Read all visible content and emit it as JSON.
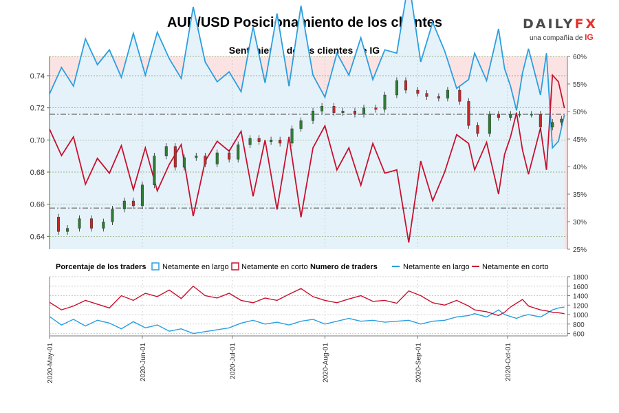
{
  "header": {
    "title": "AUD/USD Posicionamiento de los clientes",
    "subtitle": "Sentimiento de los clientes de IG",
    "brand_daily": "DAILY",
    "brand_fx": "FX",
    "brand_tagline": "una compañía de",
    "brand_ig": "IG"
  },
  "colors": {
    "long": "#2a9fe0",
    "short": "#c8102e",
    "up": "#2e7d32",
    "down": "#c62828",
    "bg_short": "#fbe3e4",
    "bg_long": "#e5f2fa"
  },
  "legend": {
    "pct_title": "Porcentaje de los traders",
    "pct_long": "Netamente en largo",
    "pct_short": "Netamente en corto",
    "num_title": "Numero de traders",
    "num_long": "Netamente en largo",
    "num_short": "Netamente en corto"
  },
  "chart_data": [
    {
      "type": "candlestick",
      "title": "Sentimiento de los clientes de IG",
      "ylim": [
        0.632,
        0.752
      ],
      "y_ticks": [
        "0.74",
        "0.72",
        "0.70",
        "0.68",
        "0.66",
        "0.64"
      ],
      "y_tick_values": [
        0.74,
        0.72,
        0.7,
        0.68,
        0.66,
        0.64
      ],
      "y2_ticks": [
        "60%",
        "55%",
        "50%",
        "45%",
        "40%",
        "35%",
        "30%",
        "25%"
      ],
      "y2_tick_values": [
        60,
        55,
        50,
        45,
        40,
        35,
        30,
        25
      ],
      "reference_levels": [
        0.716,
        0.6576
      ],
      "x_labels": [
        "2020-May-01",
        "2020-Jun-01",
        "2020-Jul-01",
        "2020-Aug-01",
        "2020-Sep-01",
        "2020-Oct-01"
      ],
      "x_label_days": [
        0,
        31,
        61,
        92,
        123,
        153
      ],
      "price_close": [
        [
          0,
          0.652
        ],
        [
          3,
          0.643
        ],
        [
          6,
          0.645
        ],
        [
          10,
          0.651
        ],
        [
          14,
          0.645
        ],
        [
          18,
          0.649
        ],
        [
          21,
          0.657
        ],
        [
          25,
          0.662
        ],
        [
          28,
          0.659
        ],
        [
          31,
          0.672
        ],
        [
          35,
          0.69
        ],
        [
          39,
          0.696
        ],
        [
          42,
          0.683
        ],
        [
          45,
          0.689
        ],
        [
          49,
          0.69
        ],
        [
          52,
          0.685
        ],
        [
          56,
          0.692
        ],
        [
          60,
          0.688
        ],
        [
          63,
          0.697
        ],
        [
          67,
          0.701
        ],
        [
          70,
          0.699
        ],
        [
          74,
          0.7
        ],
        [
          77,
          0.698
        ],
        [
          81,
          0.707
        ],
        [
          84,
          0.712
        ],
        [
          88,
          0.718
        ],
        [
          91,
          0.721
        ],
        [
          95,
          0.717
        ],
        [
          98,
          0.718
        ],
        [
          102,
          0.716
        ],
        [
          105,
          0.72
        ],
        [
          109,
          0.719
        ],
        [
          112,
          0.728
        ],
        [
          116,
          0.737
        ],
        [
          119,
          0.731
        ],
        [
          123,
          0.729
        ],
        [
          126,
          0.727
        ],
        [
          130,
          0.726
        ],
        [
          133,
          0.731
        ],
        [
          137,
          0.724
        ],
        [
          140,
          0.709
        ],
        [
          143,
          0.704
        ],
        [
          147,
          0.716
        ],
        [
          150,
          0.714
        ],
        [
          154,
          0.716
        ],
        [
          157,
          0.716
        ],
        [
          161,
          0.716
        ],
        [
          164,
          0.708
        ],
        [
          168,
          0.711
        ],
        [
          171,
          0.713
        ]
      ],
      "series": [
        {
          "name": "Netamente en largo (%)",
          "values": [
            [
              0,
              53.2
            ],
            [
              4,
              58.0
            ],
            [
              8,
              54.6
            ],
            [
              12,
              63.2
            ],
            [
              16,
              58.5
            ],
            [
              20,
              61.2
            ],
            [
              24,
              56.2
            ],
            [
              28,
              64.2
            ],
            [
              32,
              56.6
            ],
            [
              36,
              64.4
            ],
            [
              40,
              59.6
            ],
            [
              44,
              56.0
            ],
            [
              48,
              69.0
            ],
            [
              52,
              59.0
            ],
            [
              56,
              55.4
            ],
            [
              60,
              57.2
            ],
            [
              64,
              53.6
            ],
            [
              68,
              65.4
            ],
            [
              72,
              55.2
            ],
            [
              76,
              67.8
            ],
            [
              80,
              54.6
            ],
            [
              84,
              69.2
            ],
            [
              88,
              56.6
            ],
            [
              92,
              52.6
            ],
            [
              96,
              60.6
            ],
            [
              100,
              56.6
            ],
            [
              104,
              63.4
            ],
            [
              108,
              55.8
            ],
            [
              112,
              61.2
            ],
            [
              116,
              60.6
            ],
            [
              120,
              73.8
            ],
            [
              124,
              59.0
            ],
            [
              128,
              66.2
            ],
            [
              132,
              61.0
            ],
            [
              136,
              54.2
            ],
            [
              140,
              55.8
            ],
            [
              142,
              60.6
            ],
            [
              146,
              55.6
            ],
            [
              150,
              65.0
            ],
            [
              152,
              57.8
            ],
            [
              154,
              54.6
            ],
            [
              156,
              50.2
            ],
            [
              158,
              57.0
            ],
            [
              160,
              61.4
            ],
            [
              164,
              53.0
            ],
            [
              166,
              60.6
            ],
            [
              168,
              43.4
            ],
            [
              170,
              44.6
            ],
            [
              172,
              49.4
            ]
          ]
        },
        {
          "name": "Netamente en corto (%)",
          "values": [
            [
              0,
              46.8
            ],
            [
              4,
              42.0
            ],
            [
              8,
              45.4
            ],
            [
              12,
              36.8
            ],
            [
              16,
              41.5
            ],
            [
              20,
              38.8
            ],
            [
              24,
              43.8
            ],
            [
              28,
              35.8
            ],
            [
              32,
              43.4
            ],
            [
              36,
              35.6
            ],
            [
              40,
              40.4
            ],
            [
              44,
              44.0
            ],
            [
              48,
              31.0
            ],
            [
              52,
              41.0
            ],
            [
              56,
              44.6
            ],
            [
              60,
              42.8
            ],
            [
              64,
              46.4
            ],
            [
              68,
              34.6
            ],
            [
              72,
              44.8
            ],
            [
              76,
              32.2
            ],
            [
              80,
              45.4
            ],
            [
              84,
              30.8
            ],
            [
              88,
              43.4
            ],
            [
              92,
              47.4
            ],
            [
              96,
              39.4
            ],
            [
              100,
              43.4
            ],
            [
              104,
              36.6
            ],
            [
              108,
              44.2
            ],
            [
              112,
              38.8
            ],
            [
              116,
              39.4
            ],
            [
              120,
              26.2
            ],
            [
              124,
              41.0
            ],
            [
              128,
              33.8
            ],
            [
              132,
              39.0
            ],
            [
              136,
              45.8
            ],
            [
              140,
              44.2
            ],
            [
              142,
              39.4
            ],
            [
              146,
              44.4
            ],
            [
              150,
              35.0
            ],
            [
              152,
              42.2
            ],
            [
              154,
              45.4
            ],
            [
              156,
              49.8
            ],
            [
              158,
              43.0
            ],
            [
              160,
              38.6
            ],
            [
              164,
              47.0
            ],
            [
              166,
              39.4
            ],
            [
              168,
              56.6
            ],
            [
              170,
              55.4
            ],
            [
              172,
              50.6
            ]
          ]
        }
      ]
    },
    {
      "type": "line",
      "title": "Numero de traders",
      "ylim": [
        550,
        1800
      ],
      "y_ticks": [
        "1800",
        "1600",
        "1400",
        "1200",
        "1000",
        "800",
        "600"
      ],
      "y_tick_values": [
        1800,
        1600,
        1400,
        1200,
        1000,
        800,
        600
      ],
      "series": [
        {
          "name": "Netamente en largo",
          "values": [
            [
              0,
              960
            ],
            [
              4,
              780
            ],
            [
              8,
              900
            ],
            [
              12,
              760
            ],
            [
              16,
              880
            ],
            [
              20,
              820
            ],
            [
              24,
              700
            ],
            [
              28,
              850
            ],
            [
              32,
              720
            ],
            [
              36,
              780
            ],
            [
              40,
              650
            ],
            [
              44,
              700
            ],
            [
              48,
              600
            ],
            [
              52,
              640
            ],
            [
              56,
              680
            ],
            [
              60,
              720
            ],
            [
              64,
              820
            ],
            [
              68,
              880
            ],
            [
              72,
              800
            ],
            [
              76,
              840
            ],
            [
              80,
              780
            ],
            [
              84,
              860
            ],
            [
              88,
              900
            ],
            [
              92,
              800
            ],
            [
              96,
              860
            ],
            [
              100,
              920
            ],
            [
              104,
              860
            ],
            [
              108,
              880
            ],
            [
              112,
              840
            ],
            [
              116,
              860
            ],
            [
              120,
              880
            ],
            [
              124,
              800
            ],
            [
              128,
              860
            ],
            [
              132,
              880
            ],
            [
              136,
              950
            ],
            [
              140,
              980
            ],
            [
              142,
              1020
            ],
            [
              146,
              950
            ],
            [
              150,
              1100
            ],
            [
              152,
              1000
            ],
            [
              154,
              960
            ],
            [
              156,
              920
            ],
            [
              158,
              970
            ],
            [
              160,
              1000
            ],
            [
              164,
              950
            ],
            [
              166,
              1020
            ],
            [
              168,
              1100
            ],
            [
              170,
              1140
            ],
            [
              172,
              1160
            ]
          ]
        },
        {
          "name": "Netamente en corto",
          "values": [
            [
              0,
              1260
            ],
            [
              4,
              1100
            ],
            [
              8,
              1180
            ],
            [
              12,
              1300
            ],
            [
              16,
              1220
            ],
            [
              20,
              1140
            ],
            [
              24,
              1400
            ],
            [
              28,
              1300
            ],
            [
              32,
              1450
            ],
            [
              36,
              1380
            ],
            [
              40,
              1520
            ],
            [
              44,
              1340
            ],
            [
              48,
              1600
            ],
            [
              52,
              1400
            ],
            [
              56,
              1350
            ],
            [
              60,
              1450
            ],
            [
              64,
              1300
            ],
            [
              68,
              1250
            ],
            [
              72,
              1350
            ],
            [
              76,
              1300
            ],
            [
              80,
              1430
            ],
            [
              84,
              1550
            ],
            [
              88,
              1380
            ],
            [
              92,
              1300
            ],
            [
              96,
              1250
            ],
            [
              100,
              1330
            ],
            [
              104,
              1400
            ],
            [
              108,
              1280
            ],
            [
              112,
              1300
            ],
            [
              116,
              1240
            ],
            [
              120,
              1500
            ],
            [
              124,
              1400
            ],
            [
              128,
              1250
            ],
            [
              132,
              1200
            ],
            [
              136,
              1300
            ],
            [
              140,
              1180
            ],
            [
              142,
              1100
            ],
            [
              146,
              1060
            ],
            [
              150,
              980
            ],
            [
              152,
              1050
            ],
            [
              154,
              1160
            ],
            [
              156,
              1240
            ],
            [
              158,
              1320
            ],
            [
              160,
              1180
            ],
            [
              164,
              1100
            ],
            [
              166,
              1080
            ],
            [
              168,
              1050
            ],
            [
              170,
              1040
            ],
            [
              172,
              1020
            ]
          ]
        }
      ]
    }
  ]
}
